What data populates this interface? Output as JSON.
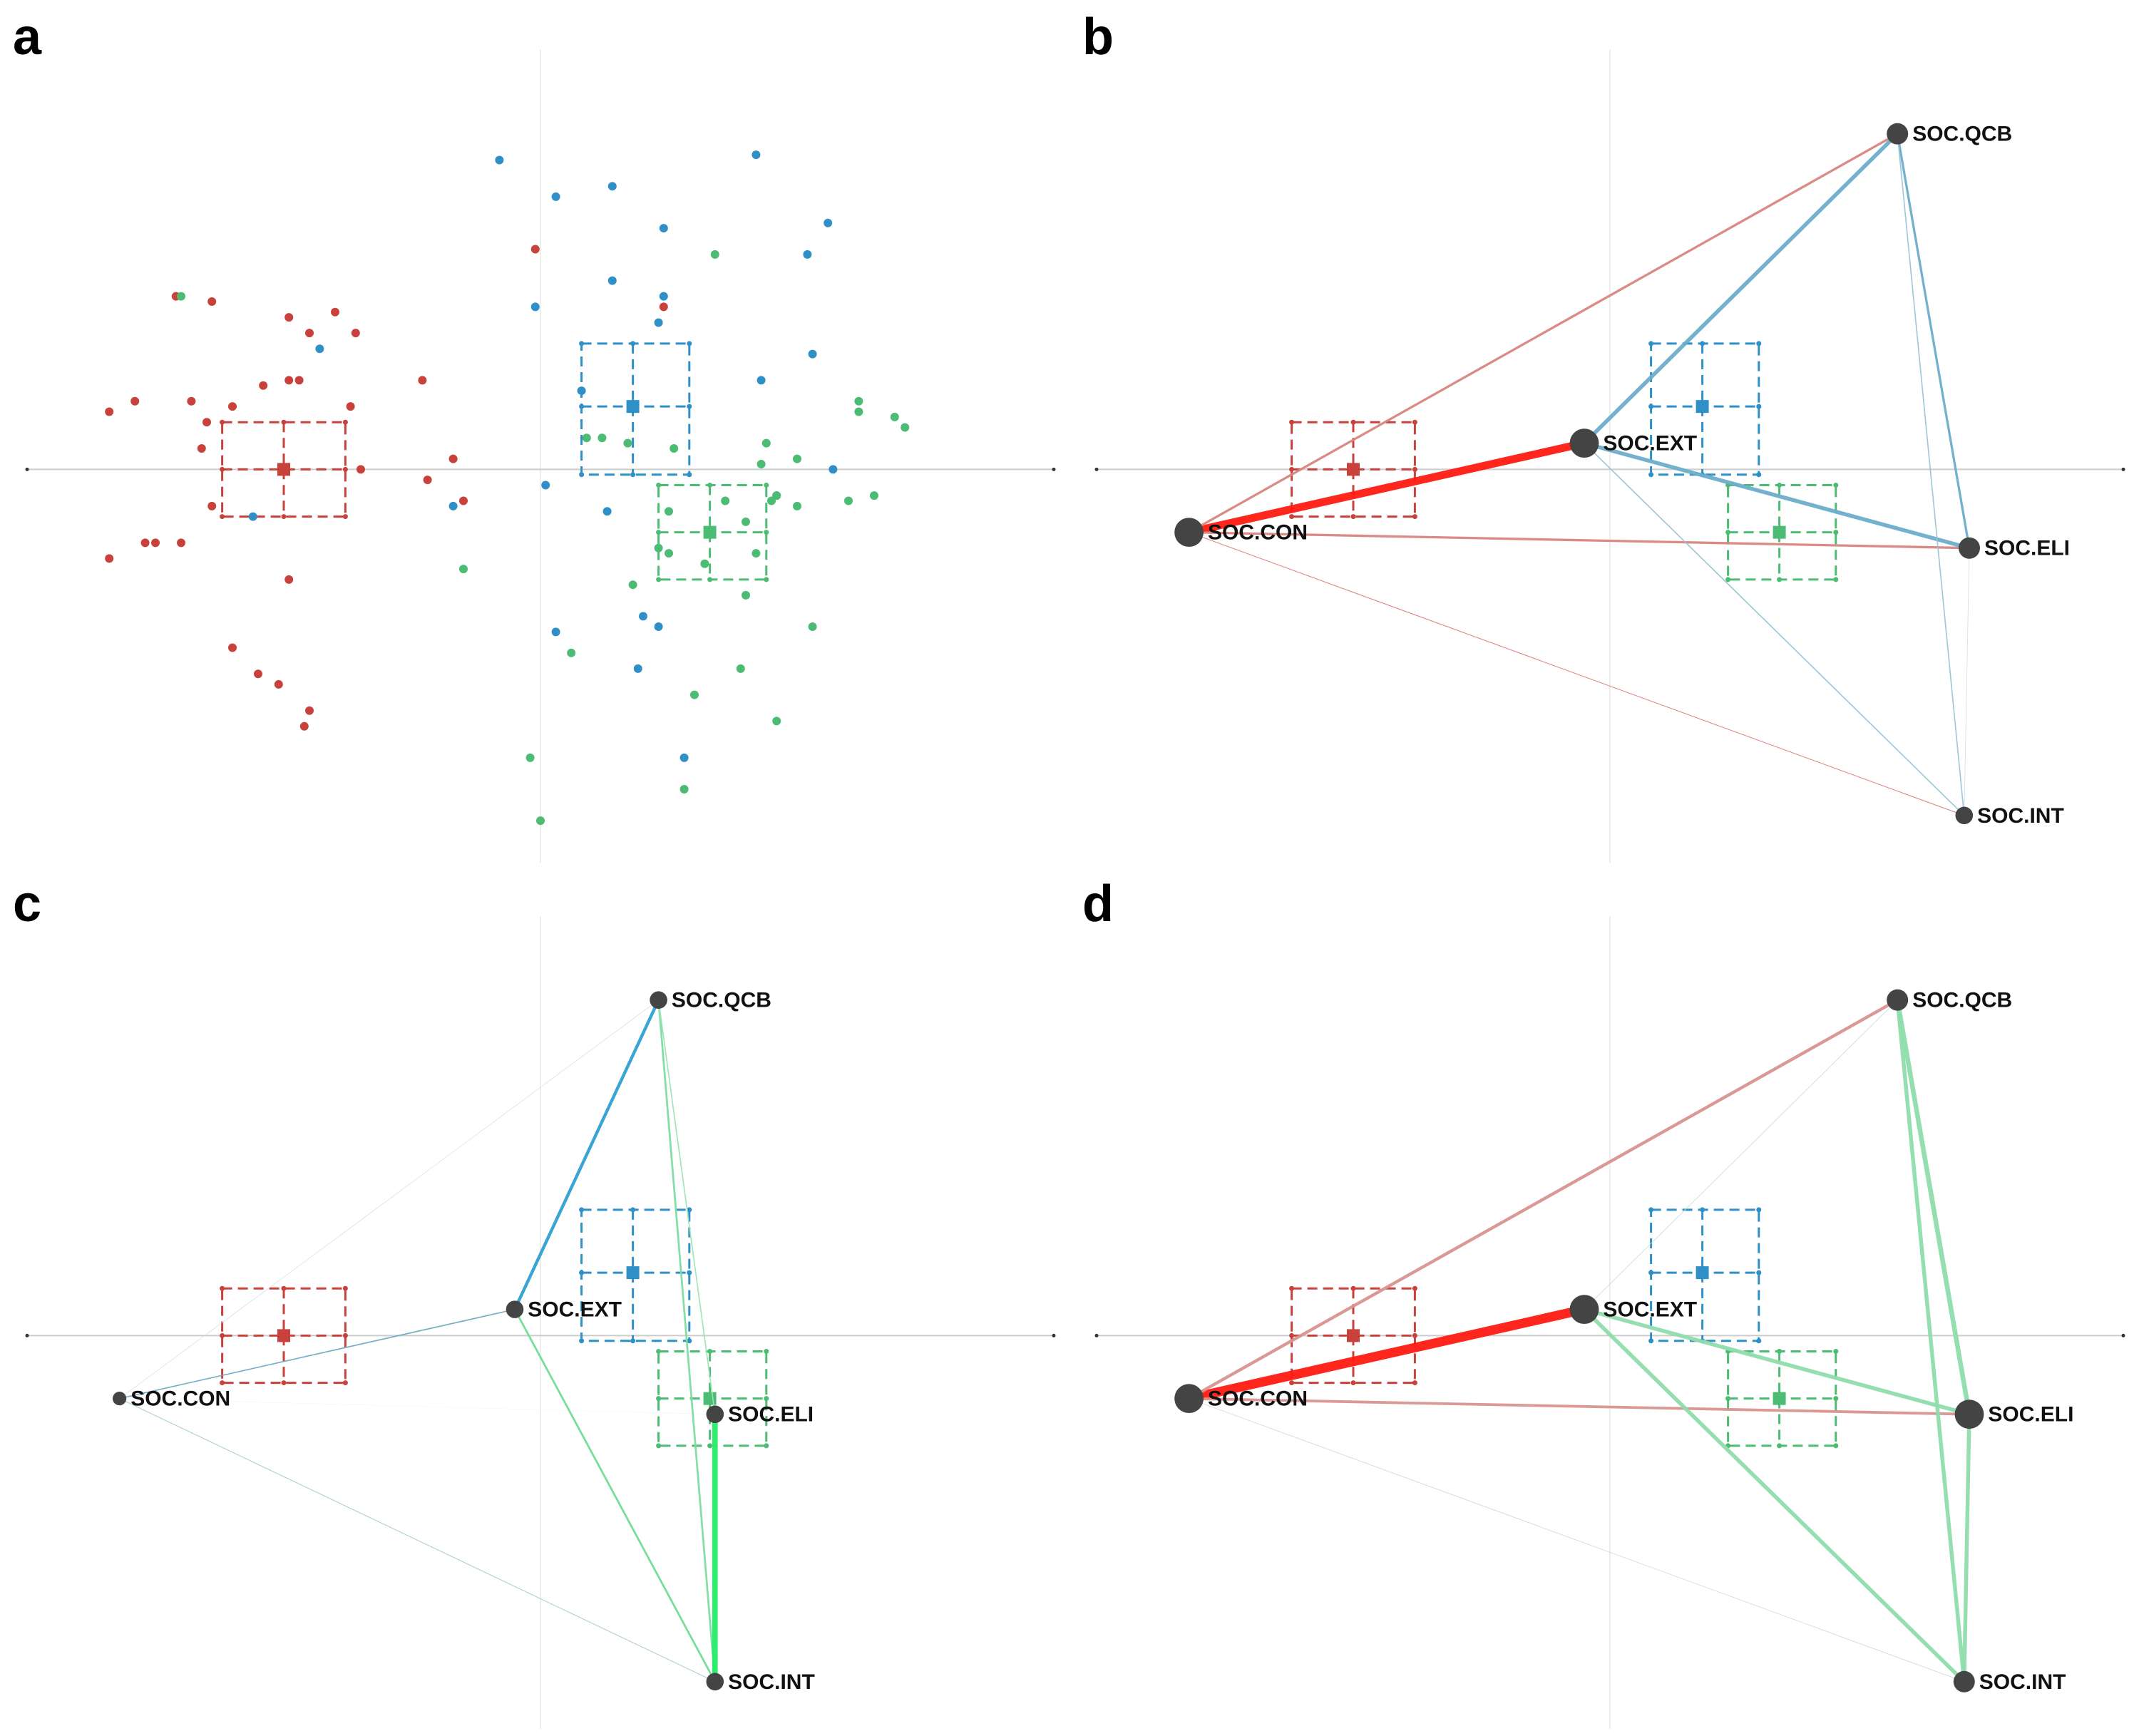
{
  "colors": {
    "red": "#c8423b",
    "blue": "#2f8fc7",
    "green": "#4cbc74",
    "node": "#444444",
    "axis": "#cccccc",
    "grid": "#eeeeee"
  },
  "chart_data": [
    {
      "type": "scatter",
      "panel": "a",
      "title": "",
      "xlim": [
        -10,
        10
      ],
      "ylim": [
        -7.5,
        8
      ],
      "grid": true,
      "groups": [
        {
          "name": "red",
          "color": "#c8423b",
          "centroid": [
            -5,
            0
          ],
          "box": {
            "x": [
              -6.2,
              -3.8
            ],
            "y": [
              -0.9,
              0.9
            ]
          },
          "points": [
            [
              -8.4,
              1.1
            ],
            [
              -7.9,
              1.3
            ],
            [
              -7.1,
              3.3
            ],
            [
              -6.4,
              3.2
            ],
            [
              -4.9,
              2.9
            ],
            [
              -4.5,
              2.6
            ],
            [
              -4.9,
              1.7
            ],
            [
              -6.8,
              1.3
            ],
            [
              -6.5,
              0.9
            ],
            [
              -6.6,
              0.4
            ],
            [
              -5.4,
              1.6
            ],
            [
              -4.7,
              1.7
            ],
            [
              -3.6,
              2.6
            ],
            [
              -3.7,
              1.2
            ],
            [
              -2.3,
              1.7
            ],
            [
              -6.0,
              1.2
            ],
            [
              -3.5,
              0
            ],
            [
              -1.7,
              0.2
            ],
            [
              -1.5,
              -0.6
            ],
            [
              -2.2,
              -0.2
            ],
            [
              -6.4,
              -0.7
            ],
            [
              -8.4,
              -1.7
            ],
            [
              -7.7,
              -1.4
            ],
            [
              -7.5,
              -1.4
            ],
            [
              -7.0,
              -1.4
            ],
            [
              -4.9,
              -2.1
            ],
            [
              -6.0,
              -3.4
            ],
            [
              -5.5,
              -3.9
            ],
            [
              -5.1,
              -4.1
            ],
            [
              -4.6,
              -4.9
            ],
            [
              -4.5,
              -4.6
            ],
            [
              -4.0,
              3.0
            ],
            [
              -0.1,
              4.2
            ],
            [
              2.4,
              3.1
            ]
          ]
        },
        {
          "name": "blue",
          "color": "#2f8fc7",
          "centroid": [
            1.8,
            1.2
          ],
          "box": {
            "x": [
              0.8,
              2.9
            ],
            "y": [
              -0.1,
              2.4
            ]
          },
          "points": [
            [
              -0.8,
              5.9
            ],
            [
              0.3,
              5.2
            ],
            [
              1.4,
              5.4
            ],
            [
              2.4,
              4.6
            ],
            [
              4.2,
              6.0
            ],
            [
              5.6,
              4.7
            ],
            [
              5.2,
              4.1
            ],
            [
              1.4,
              3.6
            ],
            [
              2.4,
              3.3
            ],
            [
              -0.1,
              3.1
            ],
            [
              2.3,
              2.8
            ],
            [
              4.3,
              1.7
            ],
            [
              5.3,
              2.2
            ],
            [
              0.8,
              1.5
            ],
            [
              -4.3,
              2.3
            ],
            [
              -5.6,
              -0.9
            ],
            [
              0.1,
              -0.3
            ],
            [
              -1.7,
              -0.7
            ],
            [
              1.3,
              -0.8
            ],
            [
              2.0,
              -2.8
            ],
            [
              2.3,
              -3.0
            ],
            [
              0.3,
              -3.1
            ],
            [
              1.9,
              -3.8
            ],
            [
              4.6,
              -0.5
            ],
            [
              5.7,
              0
            ],
            [
              2.8,
              -5.5
            ]
          ]
        },
        {
          "name": "green",
          "color": "#4cbc74",
          "centroid": [
            3.3,
            -1.2
          ],
          "box": {
            "x": [
              2.3,
              4.4
            ],
            "y": [
              -2.1,
              -0.3
            ]
          },
          "points": [
            [
              -7.0,
              3.3
            ],
            [
              3.4,
              4.1
            ],
            [
              6.2,
              1.3
            ],
            [
              6.9,
              1.0
            ],
            [
              7.1,
              0.8
            ],
            [
              6.2,
              1.1
            ],
            [
              0.9,
              0.6
            ],
            [
              1.2,
              0.6
            ],
            [
              1.7,
              0.5
            ],
            [
              2.6,
              0.4
            ],
            [
              4.4,
              0.5
            ],
            [
              5.0,
              0.2
            ],
            [
              4.3,
              0.1
            ],
            [
              4.5,
              -0.6
            ],
            [
              4.6,
              -0.5
            ],
            [
              5.0,
              -0.7
            ],
            [
              6.0,
              -0.6
            ],
            [
              6.5,
              -0.5
            ],
            [
              3.6,
              -0.6
            ],
            [
              2.5,
              -0.8
            ],
            [
              4.0,
              -1.0
            ],
            [
              2.3,
              -1.5
            ],
            [
              2.5,
              -1.6
            ],
            [
              3.2,
              -1.8
            ],
            [
              4.2,
              -1.6
            ],
            [
              1.8,
              -2.2
            ],
            [
              4.0,
              -2.4
            ],
            [
              -1.5,
              -1.9
            ],
            [
              5.3,
              -3.0
            ],
            [
              0.6,
              -3.5
            ],
            [
              3.9,
              -3.8
            ],
            [
              3.0,
              -4.3
            ],
            [
              4.6,
              -4.8
            ],
            [
              -0.2,
              -5.5
            ],
            [
              2.8,
              -6.1
            ],
            [
              0.0,
              -6.7
            ]
          ]
        }
      ]
    },
    {
      "type": "network",
      "panel": "b",
      "title": "",
      "xlim": [
        -10,
        10
      ],
      "ylim": [
        -7.5,
        8
      ],
      "edge_color_red": "#d9857f",
      "edge_color_blue": "#6cadc9",
      "edge_color_strong": "#ff1a12",
      "nodes": [
        {
          "id": "SOC.QCB",
          "label": "SOC.QCB",
          "x": 5.6,
          "y": 6.4,
          "size": 1.0
        },
        {
          "id": "SOC.EXT",
          "label": "SOC.EXT",
          "x": -0.5,
          "y": 0.5,
          "size": 1.6
        },
        {
          "id": "SOC.CON",
          "label": "SOC.CON",
          "x": -8.2,
          "y": -1.2,
          "size": 1.6
        },
        {
          "id": "SOC.ELI",
          "label": "SOC.ELI",
          "x": 7.0,
          "y": -1.5,
          "size": 1.0
        },
        {
          "id": "SOC.INT",
          "label": "SOC.INT",
          "x": 6.9,
          "y": -6.6,
          "size": 0.7
        }
      ],
      "edges": [
        {
          "source": "SOC.CON",
          "target": "SOC.EXT",
          "weight": 10,
          "color": "#ff1a12"
        },
        {
          "source": "SOC.CON",
          "target": "SOC.QCB",
          "weight": 3,
          "color": "#d9857f"
        },
        {
          "source": "SOC.CON",
          "target": "SOC.ELI",
          "weight": 3,
          "color": "#d9857f"
        },
        {
          "source": "SOC.CON",
          "target": "SOC.INT",
          "weight": 1,
          "color": "#d9857f"
        },
        {
          "source": "SOC.EXT",
          "target": "SOC.QCB",
          "weight": 5,
          "color": "#6cadc9"
        },
        {
          "source": "SOC.EXT",
          "target": "SOC.ELI",
          "weight": 5,
          "color": "#6cadc9"
        },
        {
          "source": "SOC.EXT",
          "target": "SOC.INT",
          "weight": 1.5,
          "color": "#9bc3d6"
        },
        {
          "source": "SOC.QCB",
          "target": "SOC.ELI",
          "weight": 3,
          "color": "#6cadc9"
        },
        {
          "source": "SOC.QCB",
          "target": "SOC.INT",
          "weight": 1.5,
          "color": "#9bc3d6"
        },
        {
          "source": "SOC.ELI",
          "target": "SOC.INT",
          "weight": 0.8,
          "color": "#cfe0e8"
        }
      ]
    },
    {
      "type": "network",
      "panel": "c",
      "title": "",
      "xlim": [
        -10,
        10
      ],
      "ylim": [
        -7.5,
        8
      ],
      "nodes": [
        {
          "id": "SOC.QCB",
          "label": "SOC.QCB",
          "x": 2.3,
          "y": 6.4,
          "size": 0.7
        },
        {
          "id": "SOC.EXT",
          "label": "SOC.EXT",
          "x": -0.5,
          "y": 0.5,
          "size": 0.7
        },
        {
          "id": "SOC.CON",
          "label": "SOC.CON",
          "x": -8.2,
          "y": -1.2,
          "size": 0.4
        },
        {
          "id": "SOC.ELI",
          "label": "SOC.ELI",
          "x": 3.4,
          "y": -1.5,
          "size": 0.7
        },
        {
          "id": "SOC.INT",
          "label": "SOC.INT",
          "x": 3.4,
          "y": -6.6,
          "size": 0.7
        }
      ],
      "edges": [
        {
          "source": "SOC.EXT",
          "target": "SOC.QCB",
          "weight": 4,
          "color": "#2f9fd3"
        },
        {
          "source": "SOC.CON",
          "target": "SOC.EXT",
          "weight": 1.5,
          "color": "#6fa8c4"
        },
        {
          "source": "SOC.CON",
          "target": "SOC.QCB",
          "weight": 0.7,
          "color": "#d4dfe2"
        },
        {
          "source": "SOC.CON",
          "target": "SOC.INT",
          "weight": 1,
          "color": "#a9cfc7"
        },
        {
          "source": "SOC.CON",
          "target": "SOC.ELI",
          "weight": 0.5,
          "color": "#f0f3f0"
        },
        {
          "source": "SOC.EXT",
          "target": "SOC.INT",
          "weight": 2.5,
          "color": "#6fdc94"
        },
        {
          "source": "SOC.QCB",
          "target": "SOC.INT",
          "weight": 2.5,
          "color": "#7ddca0"
        },
        {
          "source": "SOC.QCB",
          "target": "SOC.ELI",
          "weight": 1.5,
          "color": "#9fe0b6"
        },
        {
          "source": "SOC.ELI",
          "target": "SOC.INT",
          "weight": 7,
          "color": "#22ee66"
        }
      ]
    },
    {
      "type": "network",
      "panel": "d",
      "title": "",
      "xlim": [
        -10,
        10
      ],
      "ylim": [
        -7.5,
        8
      ],
      "nodes": [
        {
          "id": "SOC.QCB",
          "label": "SOC.QCB",
          "x": 5.6,
          "y": 6.4,
          "size": 1.0
        },
        {
          "id": "SOC.EXT",
          "label": "SOC.EXT",
          "x": -0.5,
          "y": 0.5,
          "size": 1.6
        },
        {
          "id": "SOC.CON",
          "label": "SOC.CON",
          "x": -8.2,
          "y": -1.2,
          "size": 1.6
        },
        {
          "id": "SOC.ELI",
          "label": "SOC.ELI",
          "x": 7.0,
          "y": -1.5,
          "size": 1.6
        },
        {
          "id": "SOC.INT",
          "label": "SOC.INT",
          "x": 6.9,
          "y": -6.6,
          "size": 1.0
        }
      ],
      "edges": [
        {
          "source": "SOC.CON",
          "target": "SOC.EXT",
          "weight": 12,
          "color": "#ff1a12"
        },
        {
          "source": "SOC.CON",
          "target": "SOC.QCB",
          "weight": 4,
          "color": "#d9948f"
        },
        {
          "source": "SOC.CON",
          "target": "SOC.ELI",
          "weight": 3.5,
          "color": "#d9948f"
        },
        {
          "source": "SOC.CON",
          "target": "SOC.INT",
          "weight": 0.8,
          "color": "#cfdad6"
        },
        {
          "source": "SOC.EXT",
          "target": "SOC.QCB",
          "weight": 0.8,
          "color": "#c8dcd2"
        },
        {
          "source": "SOC.EXT",
          "target": "SOC.ELI",
          "weight": 5,
          "color": "#8fdcac"
        },
        {
          "source": "SOC.EXT",
          "target": "SOC.INT",
          "weight": 5,
          "color": "#8fdcac"
        },
        {
          "source": "SOC.QCB",
          "target": "SOC.ELI",
          "weight": 6,
          "color": "#8fdcac"
        },
        {
          "source": "SOC.QCB",
          "target": "SOC.INT",
          "weight": 5,
          "color": "#8fdcac"
        },
        {
          "source": "SOC.ELI",
          "target": "SOC.INT",
          "weight": 5,
          "color": "#8fdcac"
        }
      ]
    }
  ]
}
